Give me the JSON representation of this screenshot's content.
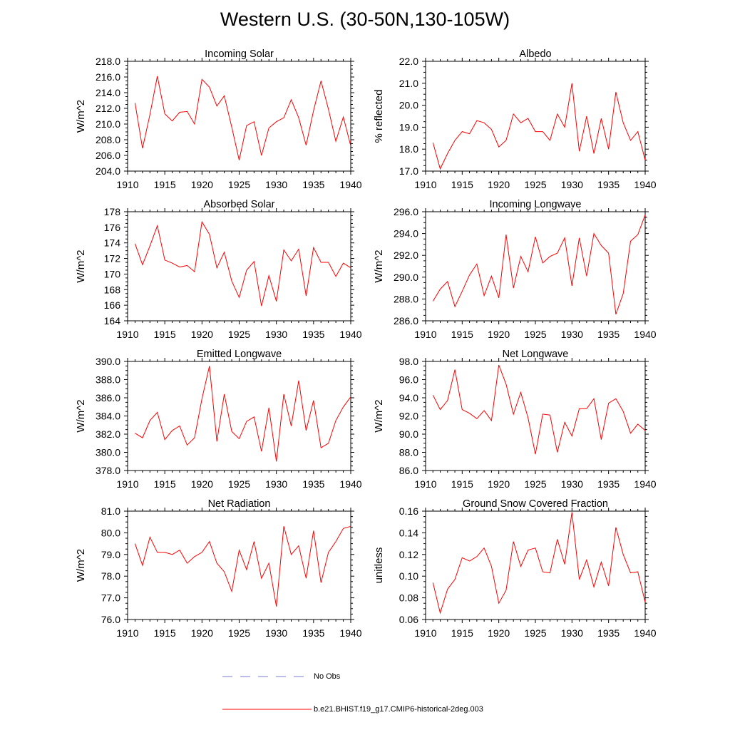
{
  "page": {
    "title": "Western U.S. (30-50N,130-105W)"
  },
  "legend": {
    "obs_label": "No Obs",
    "obs_color": "#7b7bd8",
    "model_label": "b.e21.BHIST.f19_g17.CMIP6-historical-2deg.003",
    "model_color": "#ff0000"
  },
  "colors": {
    "series": "#ff0000",
    "axis": "#000000"
  },
  "chart_data": [
    {
      "type": "line",
      "title": "Incoming Solar",
      "ylabel": "W/m^2",
      "xlabel": "",
      "xlim": [
        1910,
        1940
      ],
      "ylim": [
        204.0,
        218.0
      ],
      "yticks": [
        204.0,
        206.0,
        208.0,
        210.0,
        212.0,
        214.0,
        216.0,
        218.0
      ],
      "ytick_labels": [
        "204.0",
        "206.0",
        "208.0",
        "210.0",
        "212.0",
        "214.0",
        "216.0",
        "218.0"
      ],
      "xticks": [
        1910,
        1915,
        1920,
        1925,
        1930,
        1935,
        1940
      ],
      "xtick_labels": [
        "1910",
        "1915",
        "1920",
        "1925",
        "1930",
        "1935",
        "1940"
      ],
      "x": [
        1911,
        1912,
        1913,
        1914,
        1915,
        1916,
        1917,
        1918,
        1919,
        1920,
        1921,
        1922,
        1923,
        1924,
        1925,
        1926,
        1927,
        1928,
        1929,
        1930,
        1931,
        1932,
        1933,
        1934,
        1935,
        1936,
        1937,
        1938,
        1939,
        1940
      ],
      "y": [
        212.7,
        206.9,
        211.2,
        216.1,
        211.3,
        210.4,
        211.5,
        211.6,
        210.0,
        215.7,
        214.7,
        212.3,
        213.6,
        209.6,
        205.4,
        209.8,
        210.3,
        206.0,
        209.5,
        210.3,
        210.8,
        213.1,
        210.8,
        207.3,
        211.7,
        215.5,
        211.9,
        207.8,
        210.9,
        207.2
      ]
    },
    {
      "type": "line",
      "title": "Albedo",
      "ylabel": "% reflected",
      "xlabel": "",
      "xlim": [
        1910,
        1940
      ],
      "ylim": [
        17.0,
        22.0
      ],
      "yticks": [
        17.0,
        18.0,
        19.0,
        20.0,
        21.0,
        22.0
      ],
      "ytick_labels": [
        "17.0",
        "18.0",
        "19.0",
        "20.0",
        "21.0",
        "22.0"
      ],
      "xticks": [
        1910,
        1915,
        1920,
        1925,
        1930,
        1935,
        1940
      ],
      "xtick_labels": [
        "1910",
        "1915",
        "1920",
        "1925",
        "1930",
        "1935",
        "1940"
      ],
      "x": [
        1911,
        1912,
        1913,
        1914,
        1915,
        1916,
        1917,
        1918,
        1919,
        1920,
        1921,
        1922,
        1923,
        1924,
        1925,
        1926,
        1927,
        1928,
        1929,
        1930,
        1931,
        1932,
        1933,
        1934,
        1935,
        1936,
        1937,
        1938,
        1939,
        1940
      ],
      "y": [
        18.3,
        17.1,
        17.8,
        18.4,
        18.8,
        18.7,
        19.3,
        19.2,
        18.9,
        18.1,
        18.4,
        19.6,
        19.2,
        19.4,
        18.8,
        18.8,
        18.4,
        19.6,
        19.0,
        21.0,
        17.9,
        19.5,
        17.8,
        19.4,
        18.0,
        20.6,
        19.2,
        18.4,
        18.8,
        17.5
      ]
    },
    {
      "type": "line",
      "title": "Absorbed Solar",
      "ylabel": "W/m^2",
      "xlabel": "",
      "xlim": [
        1910,
        1940
      ],
      "ylim": [
        164,
        178
      ],
      "yticks": [
        164,
        166,
        168,
        170,
        172,
        174,
        176,
        178
      ],
      "ytick_labels": [
        "164",
        "166",
        "168",
        "170",
        "172",
        "174",
        "176",
        "178"
      ],
      "xticks": [
        1910,
        1915,
        1920,
        1925,
        1930,
        1935,
        1940
      ],
      "xtick_labels": [
        "1910",
        "1915",
        "1920",
        "1925",
        "1930",
        "1935",
        "1940"
      ],
      "x": [
        1911,
        1912,
        1913,
        1914,
        1915,
        1916,
        1917,
        1918,
        1919,
        1920,
        1921,
        1922,
        1923,
        1924,
        1925,
        1926,
        1927,
        1928,
        1929,
        1930,
        1931,
        1932,
        1933,
        1934,
        1935,
        1936,
        1937,
        1938,
        1939,
        1940
      ],
      "y": [
        173.9,
        171.2,
        173.6,
        176.2,
        171.8,
        171.4,
        170.9,
        171.1,
        170.3,
        176.7,
        175.1,
        170.8,
        172.8,
        169.1,
        167.0,
        170.5,
        171.6,
        165.9,
        169.8,
        166.5,
        173.1,
        171.7,
        173.2,
        167.2,
        173.4,
        171.5,
        171.5,
        169.7,
        171.4,
        170.8
      ]
    },
    {
      "type": "line",
      "title": "Incoming Longwave",
      "ylabel": "W/m^2",
      "xlabel": "",
      "xlim": [
        1910,
        1940
      ],
      "ylim": [
        286.0,
        296.0
      ],
      "yticks": [
        286.0,
        288.0,
        290.0,
        292.0,
        294.0,
        296.0
      ],
      "ytick_labels": [
        "286.0",
        "288.0",
        "290.0",
        "292.0",
        "294.0",
        "296.0"
      ],
      "xticks": [
        1910,
        1915,
        1920,
        1925,
        1930,
        1935,
        1940
      ],
      "xtick_labels": [
        "1910",
        "1915",
        "1920",
        "1925",
        "1930",
        "1935",
        "1940"
      ],
      "x": [
        1911,
        1912,
        1913,
        1914,
        1915,
        1916,
        1917,
        1918,
        1919,
        1920,
        1921,
        1922,
        1923,
        1924,
        1925,
        1926,
        1927,
        1928,
        1929,
        1930,
        1931,
        1932,
        1933,
        1934,
        1935,
        1936,
        1937,
        1938,
        1939,
        1940
      ],
      "y": [
        287.8,
        288.9,
        289.6,
        287.3,
        288.7,
        290.2,
        291.2,
        288.3,
        290.1,
        288.1,
        293.9,
        289.0,
        291.9,
        290.5,
        293.7,
        291.3,
        291.9,
        292.2,
        293.6,
        289.2,
        293.6,
        290.1,
        294.0,
        292.9,
        292.2,
        286.6,
        288.5,
        293.3,
        293.9,
        295.7
      ]
    },
    {
      "type": "line",
      "title": "Emitted Longwave",
      "ylabel": "W/m^2",
      "xlabel": "",
      "xlim": [
        1910,
        1940
      ],
      "ylim": [
        378.0,
        390.0
      ],
      "yticks": [
        378.0,
        380.0,
        382.0,
        384.0,
        386.0,
        388.0,
        390.0
      ],
      "ytick_labels": [
        "378.0",
        "380.0",
        "382.0",
        "384.0",
        "386.0",
        "388.0",
        "390.0"
      ],
      "xticks": [
        1910,
        1915,
        1920,
        1925,
        1930,
        1935,
        1940
      ],
      "xtick_labels": [
        "1910",
        "1915",
        "1920",
        "1925",
        "1930",
        "1935",
        "1940"
      ],
      "x": [
        1911,
        1912,
        1913,
        1914,
        1915,
        1916,
        1917,
        1918,
        1919,
        1920,
        1921,
        1922,
        1923,
        1924,
        1925,
        1926,
        1927,
        1928,
        1929,
        1930,
        1931,
        1932,
        1933,
        1934,
        1935,
        1936,
        1937,
        1938,
        1939,
        1940
      ],
      "y": [
        382.1,
        381.6,
        383.5,
        384.4,
        381.4,
        382.4,
        382.9,
        380.8,
        381.6,
        385.9,
        389.5,
        381.2,
        386.4,
        382.3,
        381.5,
        383.4,
        383.9,
        380.1,
        384.9,
        379.0,
        386.4,
        382.9,
        387.9,
        382.4,
        385.7,
        380.5,
        381.0,
        383.5,
        385.0,
        386.1
      ]
    },
    {
      "type": "line",
      "title": "Net Longwave",
      "ylabel": "W/m^2",
      "xlabel": "",
      "xlim": [
        1910,
        1940
      ],
      "ylim": [
        86.0,
        98.0
      ],
      "yticks": [
        86.0,
        88.0,
        90.0,
        92.0,
        94.0,
        96.0,
        98.0
      ],
      "ytick_labels": [
        "86.0",
        "88.0",
        "90.0",
        "92.0",
        "94.0",
        "96.0",
        "98.0"
      ],
      "xticks": [
        1910,
        1915,
        1920,
        1925,
        1930,
        1935,
        1940
      ],
      "xtick_labels": [
        "1910",
        "1915",
        "1920",
        "1925",
        "1930",
        "1935",
        "1940"
      ],
      "x": [
        1911,
        1912,
        1913,
        1914,
        1915,
        1916,
        1917,
        1918,
        1919,
        1920,
        1921,
        1922,
        1923,
        1924,
        1925,
        1926,
        1927,
        1928,
        1929,
        1930,
        1931,
        1932,
        1933,
        1934,
        1935,
        1936,
        1937,
        1938,
        1939,
        1940
      ],
      "y": [
        94.3,
        92.7,
        93.7,
        97.1,
        92.7,
        92.3,
        91.7,
        92.6,
        91.5,
        97.6,
        95.5,
        92.2,
        94.6,
        91.8,
        87.8,
        92.2,
        92.1,
        88.0,
        91.3,
        89.8,
        92.8,
        92.8,
        93.9,
        89.4,
        93.4,
        93.9,
        92.5,
        90.1,
        91.1,
        90.4
      ]
    },
    {
      "type": "line",
      "title": "Net Radiation",
      "ylabel": "W/m^2",
      "xlabel": "",
      "xlim": [
        1910,
        1940
      ],
      "ylim": [
        76.0,
        81.0
      ],
      "yticks": [
        76.0,
        77.0,
        78.0,
        79.0,
        80.0,
        81.0
      ],
      "ytick_labels": [
        "76.0",
        "77.0",
        "78.0",
        "79.0",
        "80.0",
        "81.0"
      ],
      "xticks": [
        1910,
        1915,
        1920,
        1925,
        1930,
        1935,
        1940
      ],
      "xtick_labels": [
        "1910",
        "1915",
        "1920",
        "1925",
        "1930",
        "1935",
        "1940"
      ],
      "x": [
        1911,
        1912,
        1913,
        1914,
        1915,
        1916,
        1917,
        1918,
        1919,
        1920,
        1921,
        1922,
        1923,
        1924,
        1925,
        1926,
        1927,
        1928,
        1929,
        1930,
        1931,
        1932,
        1933,
        1934,
        1935,
        1936,
        1937,
        1938,
        1939,
        1940
      ],
      "y": [
        79.5,
        78.5,
        79.8,
        79.1,
        79.1,
        79.0,
        79.2,
        78.6,
        78.9,
        79.1,
        79.6,
        78.6,
        78.2,
        77.3,
        79.2,
        78.3,
        79.6,
        77.9,
        78.6,
        76.6,
        80.3,
        79.0,
        79.4,
        77.9,
        80.1,
        77.7,
        79.1,
        79.6,
        80.2,
        80.3
      ]
    },
    {
      "type": "line",
      "title": "Ground Snow Covered Fraction",
      "ylabel": "unitless",
      "xlabel": "",
      "xlim": [
        1910,
        1940
      ],
      "ylim": [
        0.06,
        0.16
      ],
      "yticks": [
        0.06,
        0.08,
        0.1,
        0.12,
        0.14,
        0.16
      ],
      "ytick_labels": [
        "0.06",
        "0.08",
        "0.10",
        "0.12",
        "0.14",
        "0.16"
      ],
      "xticks": [
        1910,
        1915,
        1920,
        1925,
        1930,
        1935,
        1940
      ],
      "xtick_labels": [
        "1910",
        "1915",
        "1920",
        "1925",
        "1930",
        "1935",
        "1940"
      ],
      "x": [
        1911,
        1912,
        1913,
        1914,
        1915,
        1916,
        1917,
        1918,
        1919,
        1920,
        1921,
        1922,
        1923,
        1924,
        1925,
        1926,
        1927,
        1928,
        1929,
        1930,
        1931,
        1932,
        1933,
        1934,
        1935,
        1936,
        1937,
        1938,
        1939,
        1940
      ],
      "y": [
        0.094,
        0.066,
        0.088,
        0.097,
        0.117,
        0.114,
        0.118,
        0.126,
        0.109,
        0.075,
        0.087,
        0.132,
        0.109,
        0.124,
        0.126,
        0.104,
        0.103,
        0.134,
        0.111,
        0.159,
        0.097,
        0.115,
        0.09,
        0.113,
        0.091,
        0.145,
        0.12,
        0.103,
        0.104,
        0.076
      ]
    }
  ]
}
